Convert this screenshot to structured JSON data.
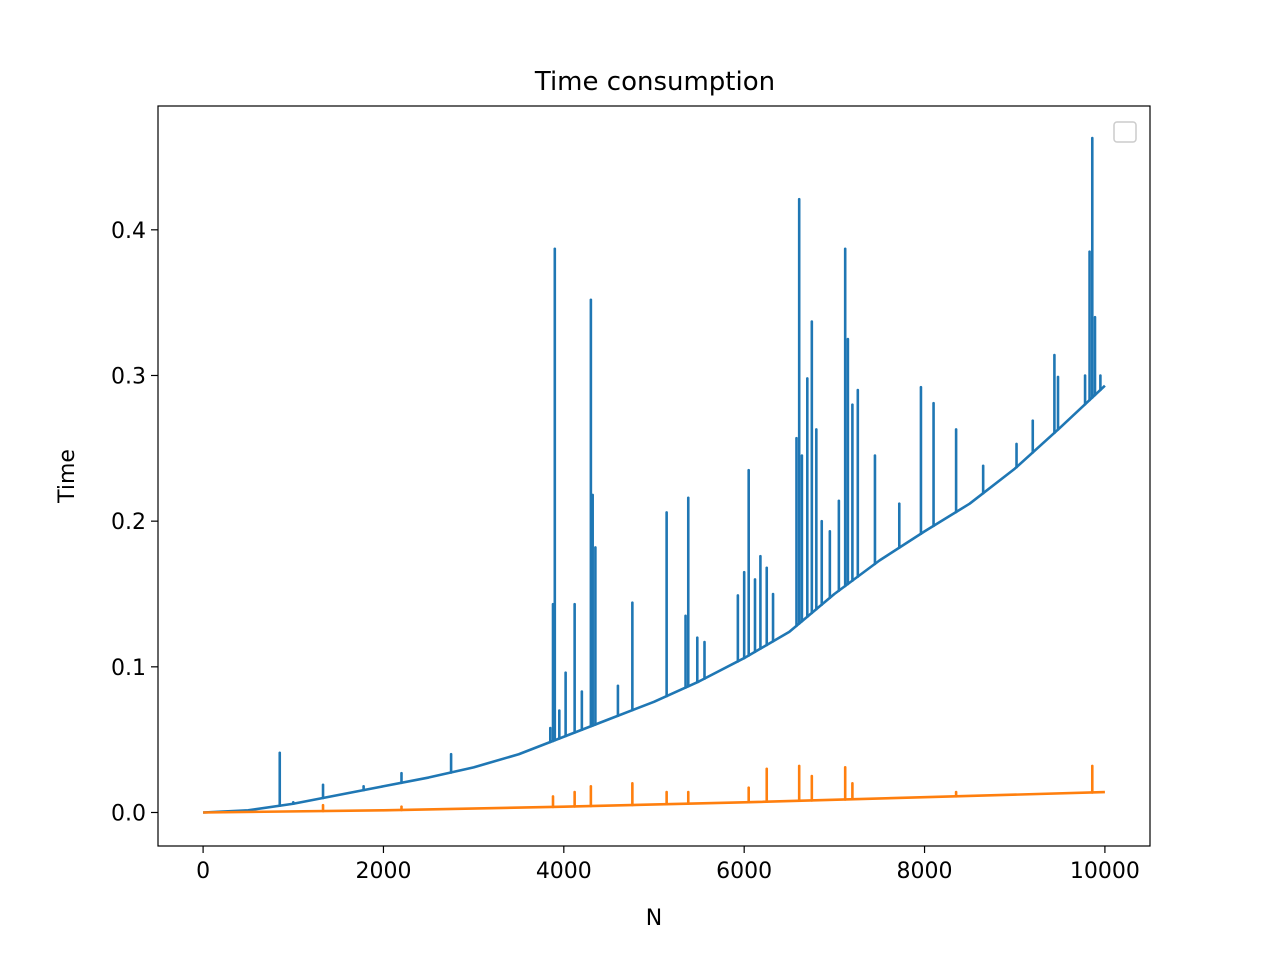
{
  "chart_data": {
    "type": "line",
    "title": "Time consumption",
    "xlabel": "N",
    "ylabel": "Time",
    "xlim": [
      -500,
      10500
    ],
    "ylim": [
      -0.023,
      0.485
    ],
    "xticks": [
      0,
      2000,
      4000,
      6000,
      8000,
      10000
    ],
    "xtick_labels": [
      "0",
      "2000",
      "4000",
      "6000",
      "8000",
      "10000"
    ],
    "yticks": [
      0.0,
      0.1,
      0.2,
      0.3,
      0.4
    ],
    "ytick_labels": [
      "0.0",
      "0.1",
      "0.2",
      "0.3",
      "0.4"
    ],
    "grid": false,
    "legend": {
      "placement": "top-right",
      "entries": []
    },
    "series": [
      {
        "color": "#1f77b4",
        "x": [
          0,
          500,
          1000,
          1500,
          2000,
          2500,
          3000,
          3500,
          4000,
          4500,
          5000,
          5500,
          6000,
          6500,
          7000,
          7500,
          8000,
          8500,
          9000,
          9500,
          10000
        ],
        "y": [
          0.0,
          0.0015,
          0.006,
          0.012,
          0.018,
          0.024,
          0.031,
          0.04,
          0.052,
          0.064,
          0.076,
          0.09,
          0.106,
          0.124,
          0.15,
          0.173,
          0.193,
          0.212,
          0.236,
          0.264,
          0.293
        ],
        "spikes": [
          [
            850,
            0.041
          ],
          [
            1000,
            0.007
          ],
          [
            1330,
            0.019
          ],
          [
            1780,
            0.018
          ],
          [
            2200,
            0.027
          ],
          [
            2750,
            0.04
          ],
          [
            3850,
            0.058
          ],
          [
            3880,
            0.143
          ],
          [
            3900,
            0.387
          ],
          [
            3950,
            0.07
          ],
          [
            4020,
            0.096
          ],
          [
            4120,
            0.143
          ],
          [
            4200,
            0.083
          ],
          [
            4300,
            0.352
          ],
          [
            4320,
            0.218
          ],
          [
            4350,
            0.182
          ],
          [
            4600,
            0.087
          ],
          [
            4760,
            0.144
          ],
          [
            5140,
            0.206
          ],
          [
            5350,
            0.135
          ],
          [
            5380,
            0.216
          ],
          [
            5480,
            0.12
          ],
          [
            5560,
            0.117
          ],
          [
            5930,
            0.149
          ],
          [
            6000,
            0.165
          ],
          [
            6050,
            0.235
          ],
          [
            6120,
            0.16
          ],
          [
            6180,
            0.176
          ],
          [
            6250,
            0.168
          ],
          [
            6320,
            0.15
          ],
          [
            6580,
            0.257
          ],
          [
            6610,
            0.421
          ],
          [
            6640,
            0.245
          ],
          [
            6700,
            0.298
          ],
          [
            6750,
            0.337
          ],
          [
            6800,
            0.263
          ],
          [
            6860,
            0.2
          ],
          [
            6950,
            0.193
          ],
          [
            7050,
            0.214
          ],
          [
            7120,
            0.387
          ],
          [
            7150,
            0.325
          ],
          [
            7200,
            0.28
          ],
          [
            7260,
            0.29
          ],
          [
            7450,
            0.245
          ],
          [
            7720,
            0.212
          ],
          [
            7960,
            0.292
          ],
          [
            8100,
            0.281
          ],
          [
            8350,
            0.263
          ],
          [
            8650,
            0.238
          ],
          [
            9020,
            0.253
          ],
          [
            9200,
            0.269
          ],
          [
            9440,
            0.314
          ],
          [
            9480,
            0.299
          ],
          [
            9780,
            0.3
          ],
          [
            9830,
            0.385
          ],
          [
            9860,
            0.463
          ],
          [
            9890,
            0.34
          ],
          [
            9950,
            0.3
          ]
        ]
      },
      {
        "color": "#ff7f0e",
        "x": [
          0,
          2000,
          4000,
          6000,
          8000,
          10000
        ],
        "y": [
          0.0,
          0.0015,
          0.004,
          0.007,
          0.0105,
          0.014
        ],
        "spikes": [
          [
            1330,
            0.005
          ],
          [
            2200,
            0.004
          ],
          [
            3880,
            0.011
          ],
          [
            4120,
            0.014
          ],
          [
            4300,
            0.018
          ],
          [
            4760,
            0.02
          ],
          [
            5140,
            0.014
          ],
          [
            5380,
            0.014
          ],
          [
            6050,
            0.017
          ],
          [
            6250,
            0.03
          ],
          [
            6610,
            0.032
          ],
          [
            6750,
            0.025
          ],
          [
            7120,
            0.031
          ],
          [
            7200,
            0.02
          ],
          [
            8350,
            0.014
          ],
          [
            9860,
            0.032
          ]
        ]
      }
    ]
  }
}
